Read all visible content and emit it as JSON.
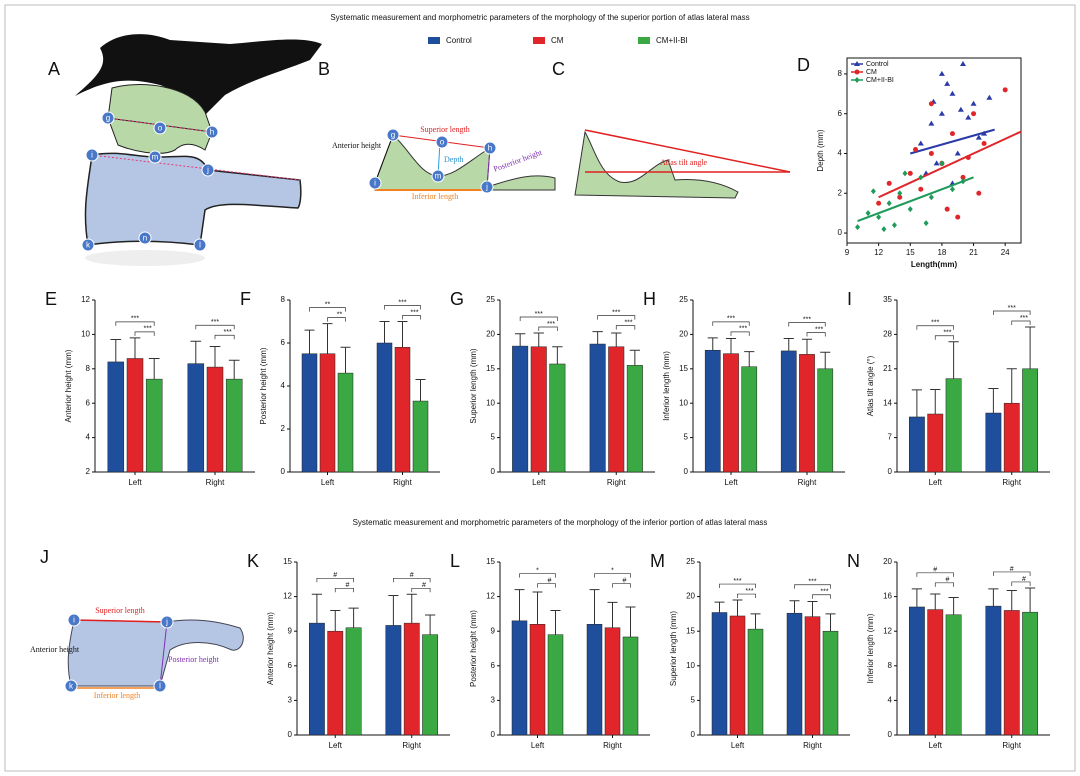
{
  "title": "Systematic measurement  and morphometric parameters of the morphology of the superior portion  of atlas lateral mass",
  "subtitle": "Systematic measurement  and morphometric parameters of the morphology of the inferior portion  of atlas lateral mass",
  "legend": [
    {
      "name": "Control",
      "color": "#1f4e9c"
    },
    {
      "name": "CM",
      "color": "#e0262a"
    },
    {
      "name": "CM+II-BI",
      "color": "#3aa843"
    }
  ],
  "diagrams": {
    "A": {
      "panel": "A",
      "points": [
        "g",
        "o",
        "h",
        "i",
        "m",
        "j",
        "k",
        "n",
        "l"
      ]
    },
    "B": {
      "panel": "B",
      "points": [
        "g",
        "o",
        "h",
        "i",
        "m",
        "j"
      ],
      "labels": [
        "Superior length",
        "Anterior height",
        "Depth",
        "Posterior height",
        "Inferior length"
      ]
    },
    "C": {
      "panel": "C",
      "labels": [
        "Atlas tilt angle"
      ]
    },
    "J": {
      "panel": "J",
      "points": [
        "i",
        "j",
        "k",
        "l"
      ],
      "labels": [
        "Superior length",
        "Anterior height",
        "Posterior height",
        "Inferior length"
      ]
    }
  },
  "chart_data": [
    {
      "type": "bar",
      "panel": "E",
      "ylabel": "Anterior height (mm)",
      "categories": [
        "Left",
        "Right"
      ],
      "ylim": [
        2,
        12
      ],
      "yticks": [
        2,
        4,
        6,
        8,
        10,
        12
      ],
      "series": [
        {
          "values": [
            8.4,
            8.3
          ],
          "errors": [
            1.3,
            1.3
          ]
        },
        {
          "values": [
            8.6,
            8.1
          ],
          "errors": [
            1.2,
            1.2
          ]
        },
        {
          "values": [
            7.4,
            7.4
          ],
          "errors": [
            1.2,
            1.1
          ]
        }
      ],
      "significance": [
        [
          "***",
          "***"
        ],
        [
          "***",
          "***"
        ]
      ]
    },
    {
      "type": "bar",
      "panel": "F",
      "ylabel": "Posterior height (mm)",
      "categories": [
        "Left",
        "Right"
      ],
      "ylim": [
        0,
        8
      ],
      "yticks": [
        0,
        2,
        4,
        6,
        8
      ],
      "series": [
        {
          "values": [
            5.5,
            6.0
          ],
          "errors": [
            1.1,
            1.0
          ]
        },
        {
          "values": [
            5.5,
            5.8
          ],
          "errors": [
            1.4,
            1.2
          ]
        },
        {
          "values": [
            4.6,
            3.3
          ],
          "errors": [
            1.2,
            1.0
          ]
        }
      ],
      "significance": [
        [
          "**",
          "**"
        ],
        [
          "***",
          "***"
        ]
      ]
    },
    {
      "type": "bar",
      "panel": "G",
      "ylabel": "Superior length (mm)",
      "categories": [
        "Left",
        "Right"
      ],
      "ylim": [
        0,
        25
      ],
      "yticks": [
        0,
        5,
        10,
        15,
        20,
        25
      ],
      "series": [
        {
          "values": [
            18.3,
            18.6
          ],
          "errors": [
            1.8,
            1.8
          ]
        },
        {
          "values": [
            18.2,
            18.2
          ],
          "errors": [
            2.0,
            2.0
          ]
        },
        {
          "values": [
            15.7,
            15.5
          ],
          "errors": [
            2.5,
            2.2
          ]
        }
      ],
      "significance": [
        [
          "***",
          "***"
        ],
        [
          "***",
          "***"
        ]
      ]
    },
    {
      "type": "bar",
      "panel": "H",
      "ylabel": "Inferior length (mm)",
      "categories": [
        "Left",
        "Right"
      ],
      "ylim": [
        0,
        25
      ],
      "yticks": [
        0,
        5,
        10,
        15,
        20,
        25
      ],
      "series": [
        {
          "values": [
            17.7,
            17.6
          ],
          "errors": [
            1.8,
            1.8
          ]
        },
        {
          "values": [
            17.2,
            17.1
          ],
          "errors": [
            2.2,
            2.2
          ]
        },
        {
          "values": [
            15.3,
            15.0
          ],
          "errors": [
            2.2,
            2.4
          ]
        }
      ],
      "significance": [
        [
          "***",
          "***"
        ],
        [
          "***",
          "***"
        ]
      ]
    },
    {
      "type": "bar",
      "panel": "I",
      "ylabel": "Atlas tilt angle (°)",
      "categories": [
        "Left",
        "Right"
      ],
      "ylim": [
        0,
        35
      ],
      "yticks": [
        0,
        7,
        14,
        21,
        28,
        35
      ],
      "series": [
        {
          "values": [
            11.2,
            12.0
          ],
          "errors": [
            5.5,
            5.0
          ]
        },
        {
          "values": [
            11.8,
            14.0
          ],
          "errors": [
            5.0,
            7.0
          ]
        },
        {
          "values": [
            19.0,
            21.0
          ],
          "errors": [
            7.5,
            8.5
          ]
        }
      ],
      "significance": [
        [
          "***",
          "***"
        ],
        [
          "***",
          "***"
        ]
      ]
    },
    {
      "type": "scatter",
      "panel": "D",
      "xlabel": "Length(mm)",
      "ylabel": "Depth (mm)",
      "xlim": [
        9,
        25.5
      ],
      "ylim": [
        -0.5,
        8.8
      ],
      "xticks": [
        9,
        12,
        15,
        18,
        21,
        24
      ],
      "yticks": [
        0,
        2,
        4,
        6,
        8
      ],
      "series": [
        {
          "name": "Control",
          "color": "#2a3aa8",
          "marker": "triangle",
          "x": [
            16,
            17,
            18,
            19,
            20,
            21,
            22,
            17.5,
            18.5,
            19.5,
            20.5,
            16.5,
            22.5,
            18,
            19,
            21.5,
            19.8,
            17.2
          ],
          "y": [
            4.5,
            5.5,
            6,
            7,
            8.5,
            6.5,
            5,
            3.5,
            7.5,
            4,
            5.8,
            3,
            6.8,
            8,
            2.5,
            4.8,
            6.2,
            6.6
          ],
          "trend": {
            "x": [
              15,
              23
            ],
            "y": [
              4.0,
              5.2
            ]
          }
        },
        {
          "name": "CM",
          "color": "#e0262a",
          "marker": "circle",
          "x": [
            12,
            13,
            14,
            15,
            16,
            17,
            18,
            19,
            20,
            21,
            22,
            24,
            15.5,
            18.5,
            20.5,
            17,
            19.5,
            21.5
          ],
          "y": [
            1.5,
            2.5,
            1.8,
            3,
            2.2,
            4,
            3.5,
            5,
            2.8,
            6,
            4.5,
            7.2,
            4.2,
            1.2,
            3.8,
            6.5,
            0.8,
            2.0
          ],
          "trend": {
            "x": [
              12,
              25.5
            ],
            "y": [
              1.8,
              5.1
            ]
          }
        },
        {
          "name": "CM+II-BI",
          "color": "#1e9a5a",
          "marker": "diamond",
          "x": [
            10,
            11,
            12,
            13,
            14,
            15,
            16,
            17,
            18,
            19,
            20,
            12.5,
            14.5,
            16.5,
            11.5,
            13.5
          ],
          "y": [
            0.3,
            1,
            0.8,
            1.5,
            2,
            1.2,
            2.8,
            1.8,
            3.5,
            2.2,
            2.6,
            0.2,
            3,
            0.5,
            2.1,
            0.4
          ],
          "trend": {
            "x": [
              10,
              21
            ],
            "y": [
              0.6,
              2.8
            ]
          }
        }
      ]
    },
    {
      "type": "bar",
      "panel": "K",
      "ylabel": "Anterior height (mm)",
      "categories": [
        "Left",
        "Right"
      ],
      "ylim": [
        0,
        15
      ],
      "yticks": [
        0,
        3,
        6,
        9,
        12,
        15
      ],
      "series": [
        {
          "values": [
            9.7,
            9.5
          ],
          "errors": [
            2.5,
            2.6
          ]
        },
        {
          "values": [
            9.0,
            9.7
          ],
          "errors": [
            1.8,
            2.5
          ]
        },
        {
          "values": [
            9.3,
            8.7
          ],
          "errors": [
            1.7,
            1.7
          ]
        }
      ],
      "significance": [
        [
          "#",
          "#"
        ],
        [
          "#",
          "#"
        ]
      ]
    },
    {
      "type": "bar",
      "panel": "L",
      "ylabel": "Posterior height (mm)",
      "categories": [
        "Left",
        "Right"
      ],
      "ylim": [
        0,
        15
      ],
      "yticks": [
        0,
        3,
        6,
        9,
        12,
        15
      ],
      "series": [
        {
          "values": [
            9.9,
            9.6
          ],
          "errors": [
            2.7,
            3.0
          ]
        },
        {
          "values": [
            9.6,
            9.3
          ],
          "errors": [
            2.8,
            2.2
          ]
        },
        {
          "values": [
            8.7,
            8.5
          ],
          "errors": [
            2.1,
            2.6
          ]
        }
      ],
      "significance": [
        [
          "*",
          "#"
        ],
        [
          "*",
          "#"
        ]
      ]
    },
    {
      "type": "bar",
      "panel": "M",
      "ylabel": "Superior length (mm)",
      "categories": [
        "Left",
        "Right"
      ],
      "ylim": [
        0,
        25
      ],
      "yticks": [
        0,
        5,
        10,
        15,
        20,
        25
      ],
      "series": [
        {
          "values": [
            17.7,
            17.6
          ],
          "errors": [
            1.5,
            1.8
          ]
        },
        {
          "values": [
            17.2,
            17.1
          ],
          "errors": [
            2.3,
            2.2
          ]
        },
        {
          "values": [
            15.3,
            15.0
          ],
          "errors": [
            2.2,
            2.5
          ]
        }
      ],
      "significance": [
        [
          "***",
          "***"
        ],
        [
          "***",
          "***"
        ]
      ]
    },
    {
      "type": "bar",
      "panel": "N",
      "ylabel": "Inferior length (mm)",
      "categories": [
        "Left",
        "Right"
      ],
      "ylim": [
        0,
        20
      ],
      "yticks": [
        0,
        4,
        8,
        12,
        16,
        20
      ],
      "series": [
        {
          "values": [
            14.8,
            14.9
          ],
          "errors": [
            2.1,
            2.0
          ]
        },
        {
          "values": [
            14.5,
            14.4
          ],
          "errors": [
            1.8,
            2.3
          ]
        },
        {
          "values": [
            13.9,
            14.2
          ],
          "errors": [
            2.0,
            2.8
          ]
        }
      ],
      "significance": [
        [
          "#",
          "#"
        ],
        [
          "#",
          "#"
        ]
      ]
    }
  ]
}
